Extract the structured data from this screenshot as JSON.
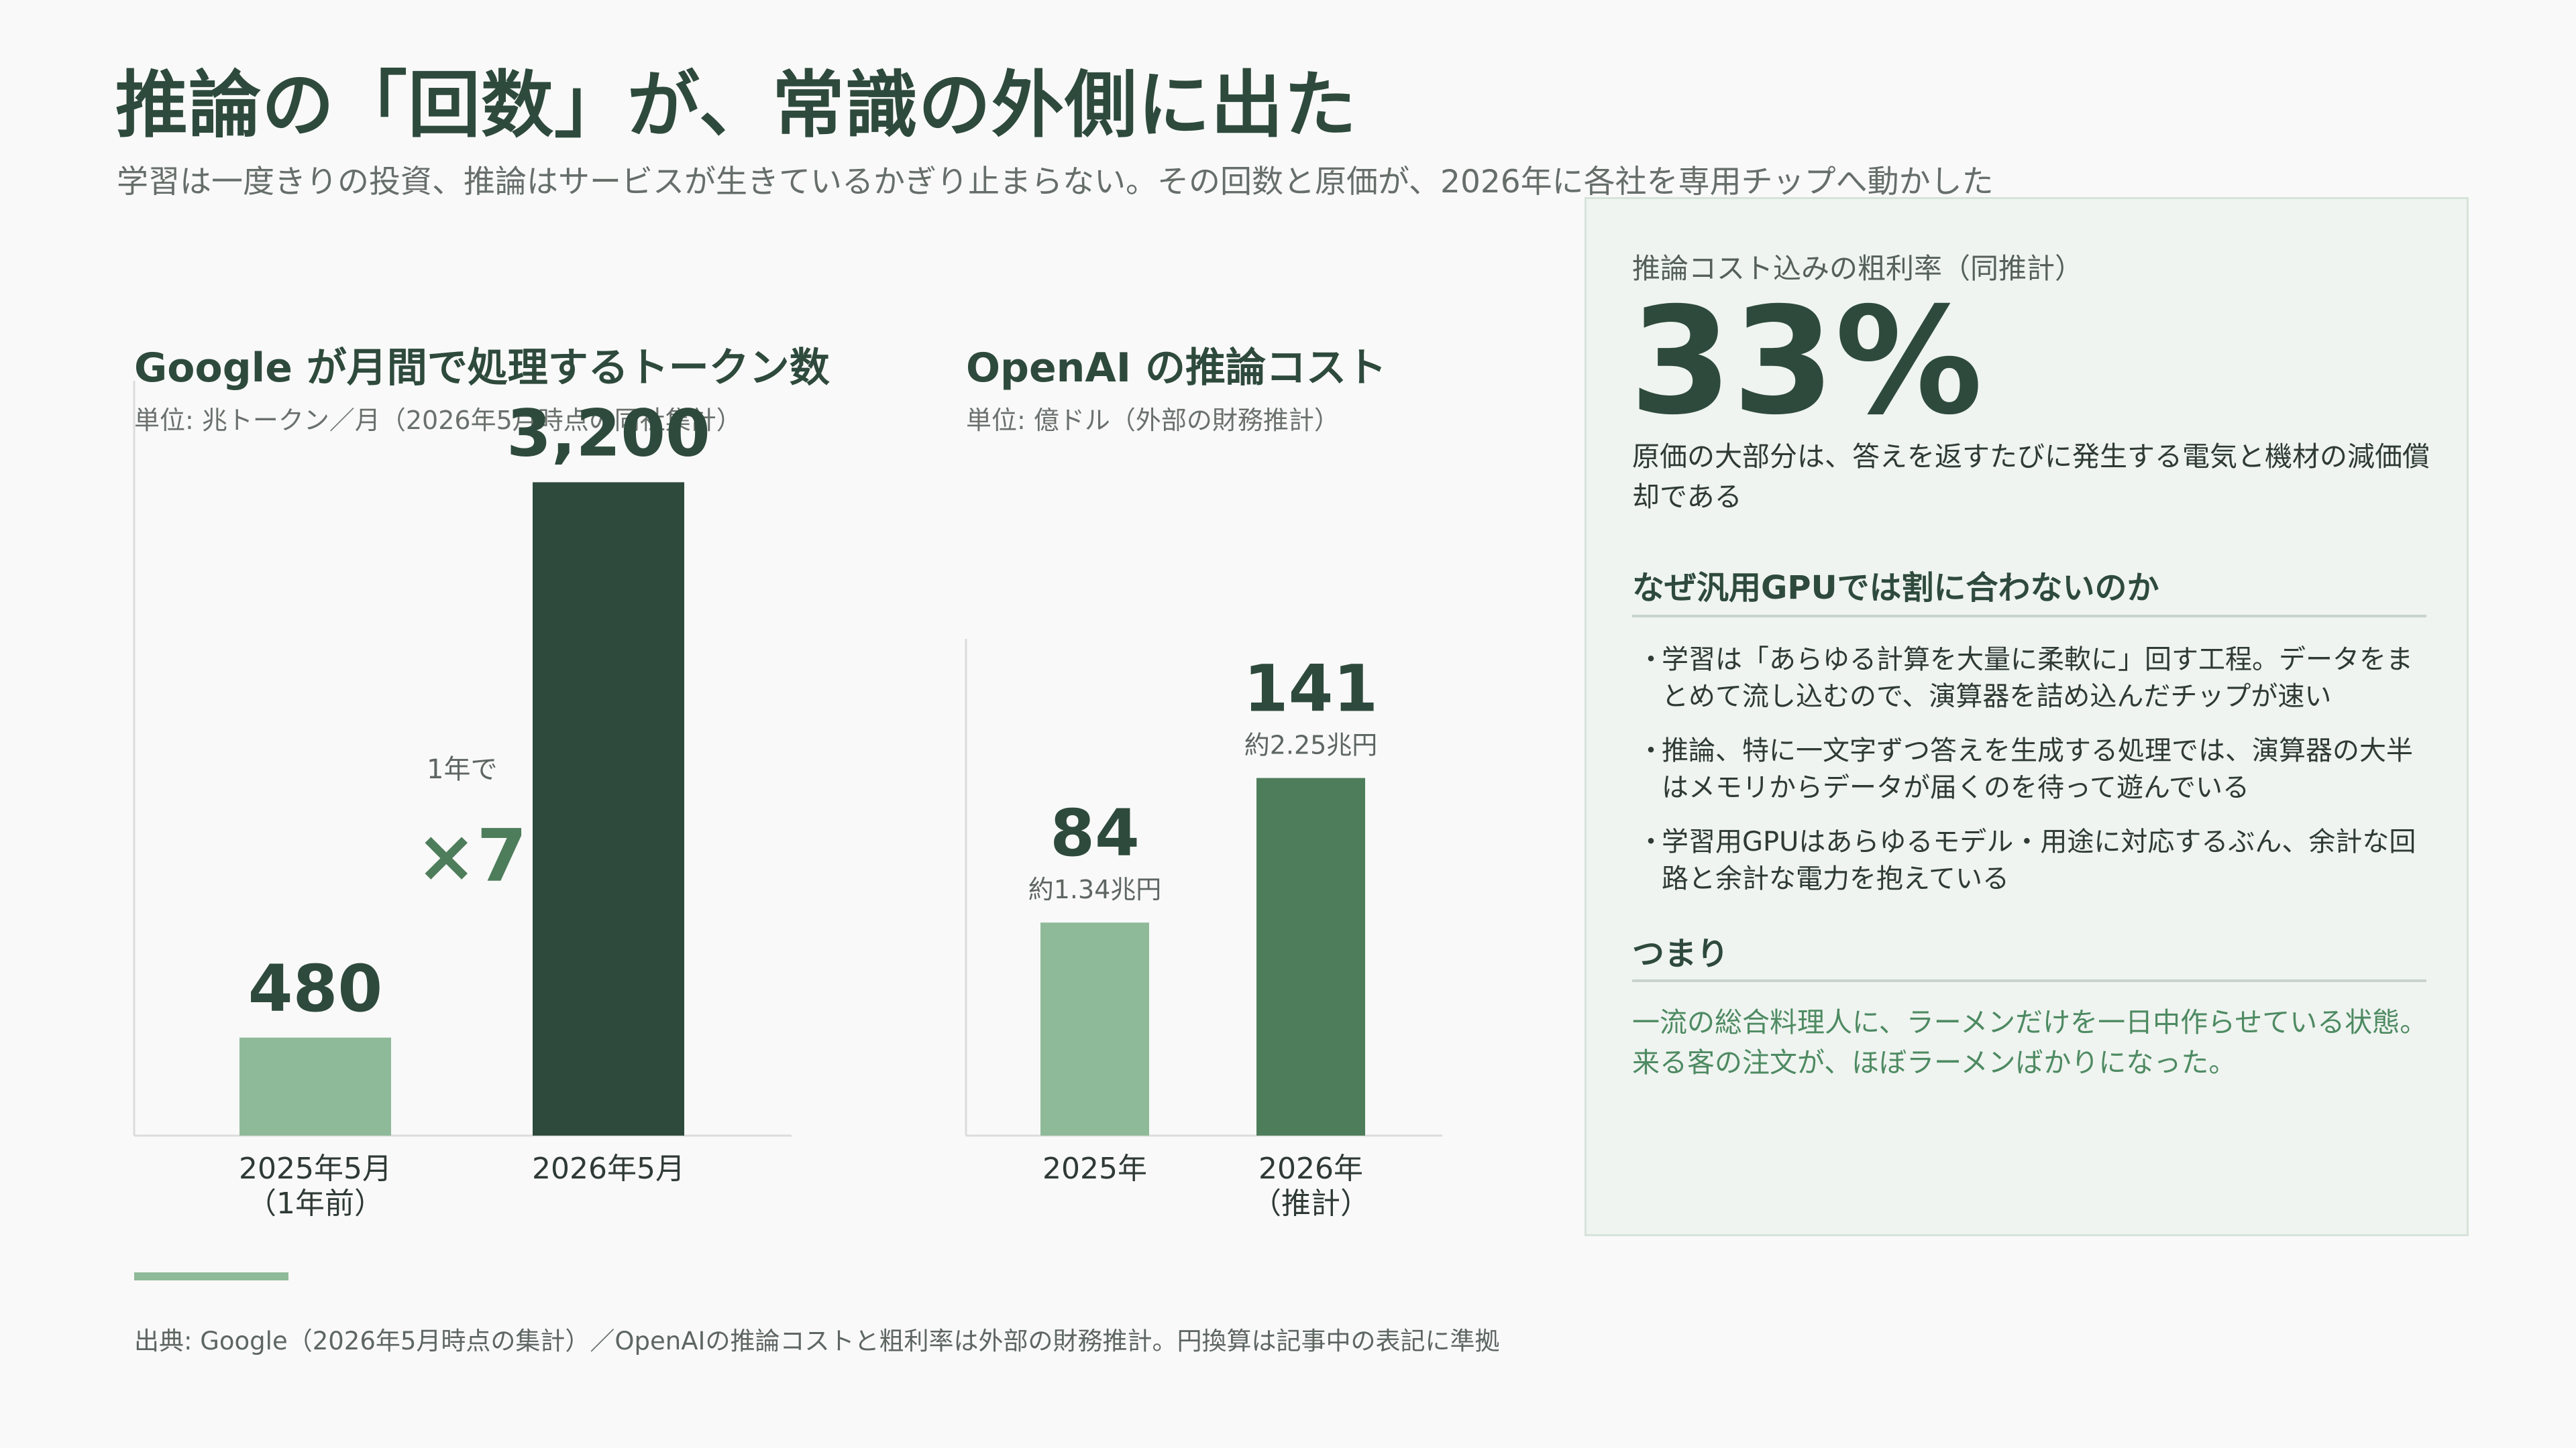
{
  "title": "推論の「回数」が、常識の外側に出た",
  "subtitle": "学習は一度きりの投資、推論はサービスが生きているかぎり止まらない。その回数と原価が、2026年に各社を専用チップへ動かした",
  "colors": {
    "dark_green": "#2e4a3c",
    "mid_green": "#4e7d5b",
    "light_green": "#8fba99",
    "accent_text": "#4e8a62"
  },
  "left_chart": {
    "title": "Google が月間で処理するトークン数",
    "unit": "単位: 兆トークン／月（2026年5月時点の同社集計）",
    "growth_prefix": "1年で",
    "growth_value": "×7"
  },
  "right_chart": {
    "title": "OpenAI の推論コスト",
    "unit": "単位: 億ドル（外部の財務推計）"
  },
  "chart_data": [
    {
      "type": "bar",
      "title": "Google が月間で処理するトークン数",
      "ylabel": "単位: 兆トークン／月（2026年5月時点の同社集計）",
      "categories": [
        [
          "2025年5月",
          "（1年前）"
        ],
        [
          "2026年5月"
        ]
      ],
      "values": [
        480,
        3200
      ],
      "value_labels": [
        "480",
        "3,200"
      ],
      "sub_labels": [
        "",
        ""
      ],
      "bar_colors": [
        "#8fba99",
        "#2e4a3c"
      ],
      "ylim": [
        0,
        3500
      ],
      "grid": false
    },
    {
      "type": "bar",
      "title": "OpenAI の推論コスト",
      "ylabel": "単位: 億ドル（外部の財務推計）",
      "categories": [
        [
          "2025年"
        ],
        [
          "2026年",
          "（推計）"
        ]
      ],
      "values": [
        84,
        141
      ],
      "value_labels": [
        "84",
        "141"
      ],
      "sub_labels": [
        "約1.34兆円",
        "約2.25兆円"
      ],
      "bar_colors": [
        "#8fba99",
        "#4e7d5b"
      ],
      "ylim": [
        0,
        180
      ],
      "grid": false
    }
  ],
  "panel": {
    "metric_label": "推論コスト込みの粗利率（同推計）",
    "metric_value": "33%",
    "metric_desc": "原価の大部分は、答えを返すたびに発生する電気と機材の減価償却である",
    "why_heading": "なぜ汎用GPUでは割に合わないのか",
    "bullet_mark": "・",
    "bullets": [
      "学習は「あらゆる計算を大量に柔軟に」回す工程。データをまとめて流し込むので、演算器を詰め込んだチップが速い",
      "推論、特に一文字ずつ答えを生成する処理では、演算器の大半はメモリからデータが届くのを待って遊んでいる",
      "学習用GPUはあらゆるモデル・用途に対応するぶん、余計な回路と余計な電力を抱えている"
    ],
    "summary_heading": "つまり",
    "summary_text": "一流の総合料理人に、ラーメンだけを一日中作らせている状態。来る客の注文が、ほぼラーメンばかりになった。"
  },
  "source": "出典: Google（2026年5月時点の集計）／OpenAIの推論コストと粗利率は外部の財務推計。円換算は記事中の表記に準拠"
}
